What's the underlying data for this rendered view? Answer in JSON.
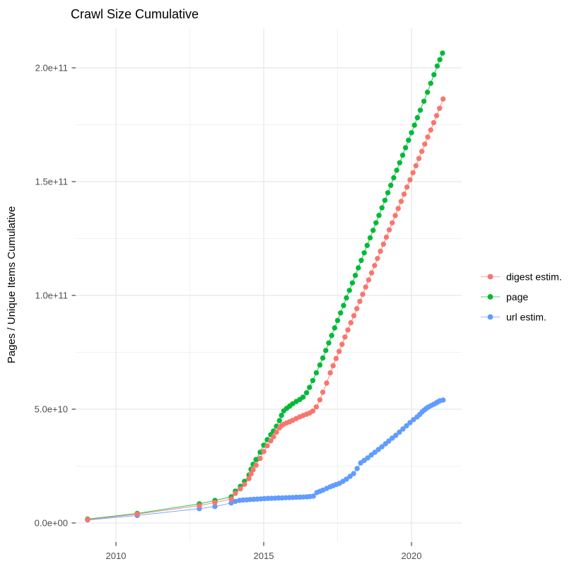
{
  "title": "Crawl Size Cumulative",
  "axes": {
    "y_title": "Pages / Unique Items Cumulative",
    "x_tick_labels": [
      "2010",
      "2015",
      "2020"
    ],
    "y_tick_labels": [
      "0.0e+00",
      "5.0e+10",
      "1.0e+11",
      "1.5e+11",
      "2.0e+11"
    ]
  },
  "legend": {
    "position": "right",
    "items": [
      "digest estim.",
      "page",
      "url estim."
    ]
  },
  "colors": {
    "digest": "#F8766D",
    "page": "#00BA38",
    "url": "#619CFF",
    "grid_major": "#E7E7E7",
    "grid_minor": "#EDEDED",
    "tick_mark": "#333333",
    "tick_label": "#4D4D4D",
    "text": "#000000",
    "background": "#FFFFFF"
  },
  "chart_data": {
    "type": "scatter",
    "title": "Crawl Size Cumulative",
    "xlabel": "",
    "ylabel": "Pages / Unique Items Cumulative",
    "x_unit": "year (decimal)",
    "y_unit": "billions of pages/items (multiply by 1e9 for actual count)",
    "xlim": [
      2008.6,
      2021.7
    ],
    "ylim": [
      -8000000000,
      217000000000
    ],
    "x_major_ticks": [
      2010,
      2015,
      2020
    ],
    "x_minor_ticks": [
      2012.5,
      2017.5
    ],
    "y_major_ticks_billions": [
      0,
      50,
      100,
      150,
      200
    ],
    "y_minor_ticks_billions": [
      25,
      75,
      125,
      175
    ],
    "grid": true,
    "legend_position": "right",
    "series": [
      {
        "name": "digest estim.",
        "color": "#F8766D",
        "points": [
          [
            2009.04,
            1.5
          ],
          [
            2010.72,
            3.9
          ],
          [
            2012.82,
            7.6
          ],
          [
            2013.35,
            9.0
          ],
          [
            2013.9,
            10.5
          ],
          [
            2014.04,
            13.0
          ],
          [
            2014.21,
            15.0
          ],
          [
            2014.35,
            17.0
          ],
          [
            2014.5,
            19.5
          ],
          [
            2014.57,
            21.5
          ],
          [
            2014.64,
            23.4
          ],
          [
            2014.74,
            25.4
          ],
          [
            2014.88,
            28.4
          ],
          [
            2015.0,
            31.4
          ],
          [
            2015.12,
            33.9
          ],
          [
            2015.24,
            36.1
          ],
          [
            2015.33,
            37.9
          ],
          [
            2015.43,
            39.9
          ],
          [
            2015.53,
            41.8
          ],
          [
            2015.6,
            42.8
          ],
          [
            2015.68,
            43.4
          ],
          [
            2015.78,
            44.0
          ],
          [
            2015.88,
            44.5
          ],
          [
            2015.98,
            45.1
          ],
          [
            2016.1,
            45.9
          ],
          [
            2016.22,
            46.6
          ],
          [
            2016.33,
            47.2
          ],
          [
            2016.45,
            47.8
          ],
          [
            2016.55,
            48.3
          ],
          [
            2016.66,
            49.2
          ],
          [
            2016.78,
            51.0
          ],
          [
            2016.9,
            54.1
          ],
          [
            2017.0,
            57.5
          ],
          [
            2017.13,
            61.5
          ],
          [
            2017.25,
            66.0
          ],
          [
            2017.35,
            69.1
          ],
          [
            2017.45,
            72.3
          ],
          [
            2017.55,
            75.4
          ],
          [
            2017.65,
            78.5
          ],
          [
            2017.75,
            81.7
          ],
          [
            2017.85,
            84.8
          ],
          [
            2017.95,
            88.0
          ],
          [
            2018.05,
            91.1
          ],
          [
            2018.15,
            94.2
          ],
          [
            2018.25,
            97.4
          ],
          [
            2018.35,
            100.5
          ],
          [
            2018.45,
            103.7
          ],
          [
            2018.55,
            106.8
          ],
          [
            2018.65,
            109.9
          ],
          [
            2018.75,
            113.1
          ],
          [
            2018.85,
            116.2
          ],
          [
            2018.95,
            119.4
          ],
          [
            2019.05,
            122.5
          ],
          [
            2019.15,
            125.6
          ],
          [
            2019.25,
            128.8
          ],
          [
            2019.35,
            131.9
          ],
          [
            2019.45,
            135.1
          ],
          [
            2019.55,
            138.2
          ],
          [
            2019.65,
            141.3
          ],
          [
            2019.75,
            144.5
          ],
          [
            2019.85,
            147.6
          ],
          [
            2019.95,
            150.8
          ],
          [
            2020.05,
            153.9
          ],
          [
            2020.15,
            157.0
          ],
          [
            2020.25,
            160.2
          ],
          [
            2020.35,
            163.3
          ],
          [
            2020.45,
            166.5
          ],
          [
            2020.55,
            169.6
          ],
          [
            2020.65,
            172.7
          ],
          [
            2020.75,
            175.9
          ],
          [
            2020.85,
            179.0
          ],
          [
            2020.95,
            182.2
          ],
          [
            2021.07,
            186.3
          ]
        ]
      },
      {
        "name": "page",
        "color": "#00BA38",
        "points": [
          [
            2009.04,
            1.7
          ],
          [
            2010.72,
            4.2
          ],
          [
            2012.82,
            8.4
          ],
          [
            2013.35,
            9.9
          ],
          [
            2013.9,
            11.5
          ],
          [
            2014.04,
            14.0
          ],
          [
            2014.21,
            16.1
          ],
          [
            2014.35,
            18.3
          ],
          [
            2014.5,
            21.1
          ],
          [
            2014.57,
            23.6
          ],
          [
            2014.64,
            25.8
          ],
          [
            2014.74,
            27.9
          ],
          [
            2014.88,
            31.1
          ],
          [
            2015.0,
            34.2
          ],
          [
            2015.12,
            36.6
          ],
          [
            2015.24,
            38.8
          ],
          [
            2015.33,
            40.4
          ],
          [
            2015.43,
            42.5
          ],
          [
            2015.53,
            45.0
          ],
          [
            2015.6,
            47.3
          ],
          [
            2015.68,
            49.3
          ],
          [
            2015.78,
            50.4
          ],
          [
            2015.88,
            51.4
          ],
          [
            2015.98,
            52.4
          ],
          [
            2016.1,
            53.4
          ],
          [
            2016.22,
            54.3
          ],
          [
            2016.33,
            55.3
          ],
          [
            2016.45,
            57.2
          ],
          [
            2016.55,
            59.6
          ],
          [
            2016.66,
            62.6
          ],
          [
            2016.78,
            66.0
          ],
          [
            2016.9,
            69.4
          ],
          [
            2017.0,
            72.5
          ],
          [
            2017.1,
            75.8
          ],
          [
            2017.2,
            79.1
          ],
          [
            2017.3,
            82.4
          ],
          [
            2017.4,
            85.7
          ],
          [
            2017.5,
            89.0
          ],
          [
            2017.6,
            92.3
          ],
          [
            2017.7,
            95.6
          ],
          [
            2017.8,
            98.9
          ],
          [
            2017.9,
            102.2
          ],
          [
            2018.0,
            105.5
          ],
          [
            2018.1,
            108.8
          ],
          [
            2018.2,
            112.1
          ],
          [
            2018.3,
            115.4
          ],
          [
            2018.4,
            118.7
          ],
          [
            2018.5,
            122.0
          ],
          [
            2018.6,
            125.3
          ],
          [
            2018.7,
            128.6
          ],
          [
            2018.8,
            131.9
          ],
          [
            2018.9,
            135.2
          ],
          [
            2019.0,
            138.5
          ],
          [
            2019.1,
            141.8
          ],
          [
            2019.2,
            145.1
          ],
          [
            2019.3,
            148.4
          ],
          [
            2019.4,
            151.7
          ],
          [
            2019.5,
            155.0
          ],
          [
            2019.6,
            158.3
          ],
          [
            2019.7,
            161.6
          ],
          [
            2019.8,
            164.9
          ],
          [
            2019.9,
            168.2
          ],
          [
            2020.0,
            171.5
          ],
          [
            2020.1,
            174.8
          ],
          [
            2020.2,
            178.1
          ],
          [
            2020.3,
            181.4
          ],
          [
            2020.42,
            185.3
          ],
          [
            2020.54,
            189.3
          ],
          [
            2020.65,
            193.2
          ],
          [
            2020.76,
            197.0
          ],
          [
            2020.87,
            200.8
          ],
          [
            2020.96,
            203.6
          ],
          [
            2021.05,
            206.5
          ]
        ]
      },
      {
        "name": "url estim.",
        "color": "#619CFF",
        "points": [
          [
            2009.04,
            1.3
          ],
          [
            2010.72,
            3.3
          ],
          [
            2012.82,
            6.3
          ],
          [
            2013.35,
            7.2
          ],
          [
            2013.9,
            8.8
          ],
          [
            2014.04,
            9.5
          ],
          [
            2014.18,
            9.9
          ],
          [
            2014.3,
            10.1
          ],
          [
            2014.42,
            10.2
          ],
          [
            2014.54,
            10.3
          ],
          [
            2014.66,
            10.4
          ],
          [
            2014.78,
            10.5
          ],
          [
            2014.9,
            10.6
          ],
          [
            2015.02,
            10.7
          ],
          [
            2015.14,
            10.8
          ],
          [
            2015.26,
            10.85
          ],
          [
            2015.38,
            10.9
          ],
          [
            2015.5,
            11.0
          ],
          [
            2015.62,
            11.0
          ],
          [
            2015.74,
            11.1
          ],
          [
            2015.86,
            11.15
          ],
          [
            2015.98,
            11.2
          ],
          [
            2016.1,
            11.3
          ],
          [
            2016.22,
            11.35
          ],
          [
            2016.34,
            11.4
          ],
          [
            2016.46,
            11.5
          ],
          [
            2016.56,
            11.6
          ],
          [
            2016.68,
            11.8
          ],
          [
            2016.8,
            13.4
          ],
          [
            2016.9,
            13.9
          ],
          [
            2017.0,
            14.4
          ],
          [
            2017.13,
            15.2
          ],
          [
            2017.25,
            15.9
          ],
          [
            2017.35,
            16.4
          ],
          [
            2017.45,
            16.9
          ],
          [
            2017.56,
            17.4
          ],
          [
            2017.68,
            18.3
          ],
          [
            2017.8,
            19.3
          ],
          [
            2017.92,
            20.5
          ],
          [
            2018.04,
            21.7
          ],
          [
            2018.16,
            23.9
          ],
          [
            2018.28,
            26.4
          ],
          [
            2018.4,
            27.5
          ],
          [
            2018.52,
            28.6
          ],
          [
            2018.64,
            29.9
          ],
          [
            2018.76,
            31.1
          ],
          [
            2018.88,
            32.3
          ],
          [
            2019.0,
            33.5
          ],
          [
            2019.12,
            34.8
          ],
          [
            2019.23,
            36.0
          ],
          [
            2019.35,
            37.3
          ],
          [
            2019.47,
            38.5
          ],
          [
            2019.59,
            39.9
          ],
          [
            2019.71,
            41.3
          ],
          [
            2019.83,
            42.7
          ],
          [
            2019.95,
            44.1
          ],
          [
            2020.07,
            45.4
          ],
          [
            2020.19,
            46.6
          ],
          [
            2020.28,
            47.7
          ],
          [
            2020.36,
            48.8
          ],
          [
            2020.43,
            49.6
          ],
          [
            2020.5,
            50.3
          ],
          [
            2020.58,
            51.0
          ],
          [
            2020.67,
            51.6
          ],
          [
            2020.76,
            52.2
          ],
          [
            2020.84,
            52.8
          ],
          [
            2020.9,
            53.3
          ],
          [
            2020.96,
            53.7
          ],
          [
            2021.07,
            54.0
          ]
        ]
      }
    ]
  }
}
